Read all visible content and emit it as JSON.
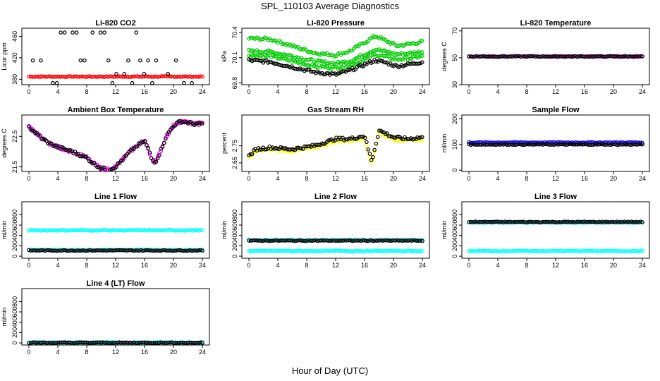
{
  "title": "SPL_110103  Average Diagnostics",
  "xlabel": "Hour of Day (UTC)",
  "colors": {
    "black": "#000000",
    "red": "#ff0000",
    "green": "#00cc00",
    "magenta": "#ff00ff",
    "yellow": "#ffff00",
    "blue": "#0000ff",
    "cyan": "#00ffff"
  },
  "chart_data": [
    {
      "type": "scatter",
      "title": "Li-820 CO2",
      "ylabel": "Licor ppm",
      "xlim": [
        0,
        24
      ],
      "ylim": [
        370,
        475
      ],
      "yticks": [
        380,
        420,
        460
      ],
      "xticks": [
        0,
        4,
        8,
        12,
        16,
        20,
        24
      ],
      "series": [
        {
          "name": "red",
          "color": "red",
          "kind": "band",
          "y": 385
        },
        {
          "name": "black",
          "color": "black",
          "kind": "rows",
          "rows": [
            467,
            415,
            390,
            373
          ]
        }
      ]
    },
    {
      "type": "scatter",
      "title": "Li-820 Pressure",
      "ylabel": "kPa",
      "xlim": [
        0,
        24
      ],
      "ylim": [
        69.78,
        70.45
      ],
      "yticks": [
        69.8,
        70.1,
        70.4
      ],
      "xticks": [
        0,
        4,
        8,
        12,
        16,
        20,
        24
      ],
      "series": [
        {
          "name": "green-upper",
          "color": "green",
          "kind": "curve",
          "x": [
            0,
            3,
            6,
            9,
            12,
            14,
            16,
            17.5,
            19,
            20.5,
            22,
            24
          ],
          "y": [
            70.33,
            70.32,
            70.24,
            70.16,
            70.13,
            70.18,
            70.28,
            70.36,
            70.3,
            70.24,
            70.26,
            70.29
          ]
        },
        {
          "name": "green-mid",
          "color": "green",
          "kind": "curve",
          "x": [
            0,
            3,
            6,
            9,
            12,
            14,
            16,
            17.5,
            19,
            20.5,
            22,
            24
          ],
          "y": [
            70.18,
            70.17,
            70.12,
            70.06,
            70.03,
            70.06,
            70.14,
            70.2,
            70.17,
            70.14,
            70.15,
            70.17
          ]
        },
        {
          "name": "green-low",
          "color": "green",
          "kind": "curve",
          "x": [
            0,
            3,
            6,
            9,
            12,
            14,
            16,
            17.5,
            19,
            20.5,
            22,
            24
          ],
          "y": [
            70.13,
            70.12,
            70.06,
            70.0,
            69.98,
            70.01,
            70.08,
            70.14,
            70.11,
            70.08,
            70.09,
            70.12
          ]
        },
        {
          "name": "black",
          "color": "black",
          "kind": "curve",
          "x": [
            0,
            3,
            6,
            9,
            12,
            14,
            16,
            17.5,
            19,
            20.5,
            22,
            24
          ],
          "y": [
            70.07,
            70.05,
            69.99,
            69.93,
            69.9,
            69.95,
            70.02,
            70.07,
            70.04,
            70.0,
            70.02,
            70.05
          ]
        }
      ]
    },
    {
      "type": "scatter",
      "title": "Li-820 Temperature",
      "ylabel": "degrees C",
      "xlim": [
        0,
        24
      ],
      "ylim": [
        30,
        72
      ],
      "yticks": [
        30,
        50,
        70
      ],
      "xticks": [
        0,
        4,
        8,
        12,
        16,
        20,
        24
      ],
      "series": [
        {
          "name": "magenta",
          "color": "magenta",
          "kind": "band",
          "y": 51
        },
        {
          "name": "black",
          "color": "black",
          "kind": "band",
          "y": 51
        }
      ]
    },
    {
      "type": "scatter",
      "title": "Ambient Box Temperature",
      "ylabel": "degrees C",
      "xlim": [
        0,
        24
      ],
      "ylim": [
        21.35,
        23.2
      ],
      "yticks": [
        21.5,
        22.5
      ],
      "xticks": [
        0,
        4,
        8,
        12,
        16,
        20,
        24
      ],
      "series": [
        {
          "name": "magenta",
          "color": "magenta",
          "kind": "curve",
          "x": [
            0,
            1,
            2,
            3,
            4,
            6,
            8,
            9,
            10,
            11,
            12,
            13,
            14,
            15,
            16,
            16.5,
            17,
            17.5,
            18,
            19,
            20,
            21,
            22,
            23,
            24
          ],
          "y": [
            22.8,
            22.6,
            22.4,
            22.25,
            22.15,
            22.0,
            21.8,
            21.6,
            21.45,
            21.42,
            21.5,
            21.75,
            22.0,
            22.2,
            22.35,
            22.1,
            21.75,
            21.65,
            21.9,
            22.5,
            22.85,
            23.0,
            22.95,
            22.9,
            22.92
          ]
        },
        {
          "name": "black",
          "color": "black",
          "kind": "curve",
          "x": [
            0,
            1,
            2,
            3,
            4,
            6,
            8,
            9,
            10,
            11,
            12,
            13,
            14,
            15,
            16,
            16.5,
            17,
            17.5,
            18,
            19,
            20,
            21,
            22,
            23,
            24
          ],
          "y": [
            22.8,
            22.6,
            22.4,
            22.25,
            22.15,
            22.0,
            21.8,
            21.6,
            21.45,
            21.42,
            21.5,
            21.75,
            22.0,
            22.2,
            22.35,
            22.1,
            21.75,
            21.65,
            21.9,
            22.5,
            22.85,
            23.0,
            22.95,
            22.9,
            22.92
          ]
        }
      ]
    },
    {
      "type": "scatter",
      "title": "Gas Stream RH",
      "ylabel": "percent",
      "xlim": [
        0,
        24
      ],
      "ylim": [
        2.6,
        2.93
      ],
      "yticks": [
        2.65,
        2.75
      ],
      "xticks": [
        0,
        4,
        8,
        12,
        16,
        20,
        24
      ],
      "series": [
        {
          "name": "yellow",
          "color": "yellow",
          "kind": "curve",
          "x": [
            0,
            1,
            3,
            6,
            9,
            12,
            14,
            16,
            16.5,
            17,
            17.5,
            18,
            19,
            20,
            22,
            24
          ],
          "y": [
            2.68,
            2.72,
            2.73,
            2.72,
            2.74,
            2.78,
            2.78,
            2.8,
            2.72,
            2.65,
            2.74,
            2.83,
            2.81,
            2.79,
            2.78,
            2.79
          ]
        },
        {
          "name": "black",
          "color": "black",
          "kind": "curve",
          "x": [
            0,
            1,
            3,
            6,
            9,
            12,
            14,
            16,
            16.5,
            17,
            17.5,
            18,
            19,
            20,
            22,
            24
          ],
          "y": [
            2.69,
            2.73,
            2.74,
            2.73,
            2.75,
            2.79,
            2.79,
            2.81,
            2.73,
            2.66,
            2.75,
            2.84,
            2.82,
            2.8,
            2.79,
            2.8
          ]
        }
      ]
    },
    {
      "type": "scatter",
      "title": "Sample Flow",
      "ylabel": "ml/min",
      "xlim": [
        0,
        24
      ],
      "ylim": [
        -5,
        215
      ],
      "yticks": [
        0,
        100,
        200
      ],
      "xticks": [
        0,
        4,
        8,
        12,
        16,
        20,
        24
      ],
      "series": [
        {
          "name": "blue",
          "color": "blue",
          "kind": "band",
          "y": 108
        },
        {
          "name": "black",
          "color": "black",
          "kind": "band",
          "y": 100
        }
      ]
    },
    {
      "type": "scatter",
      "title": "Line 1 Flow",
      "ylabel": "ml/min",
      "xlim": [
        0,
        24
      ],
      "ylim": [
        -40,
        1050
      ],
      "yticks": [
        0,
        200,
        400,
        600,
        800
      ],
      "xticks": [
        0,
        4,
        8,
        12,
        16,
        20,
        24
      ],
      "series": [
        {
          "name": "cyan",
          "color": "cyan",
          "kind": "band",
          "y": 500
        },
        {
          "name": "cyan2",
          "color": "cyan",
          "kind": "band",
          "y": 120
        },
        {
          "name": "black",
          "color": "black",
          "kind": "band",
          "y": 110
        }
      ]
    },
    {
      "type": "scatter",
      "title": "Line 2 Flow",
      "ylabel": "ml/min",
      "xlim": [
        0,
        24
      ],
      "ylim": [
        -40,
        1050
      ],
      "yticks": [
        0,
        200,
        400,
        600,
        800
      ],
      "xticks": [
        0,
        4,
        8,
        12,
        16,
        20,
        24
      ],
      "series": [
        {
          "name": "cyan",
          "color": "cyan",
          "kind": "band",
          "y": 310
        },
        {
          "name": "cyan2",
          "color": "cyan",
          "kind": "band",
          "y": 100
        },
        {
          "name": "black",
          "color": "black",
          "kind": "band",
          "y": 300
        }
      ]
    },
    {
      "type": "scatter",
      "title": "Line 3 Flow",
      "ylabel": "ml/min",
      "xlim": [
        0,
        24
      ],
      "ylim": [
        -40,
        1050
      ],
      "yticks": [
        0,
        200,
        400,
        600,
        800
      ],
      "xticks": [
        0,
        4,
        8,
        12,
        16,
        20,
        24
      ],
      "series": [
        {
          "name": "cyan",
          "color": "cyan",
          "kind": "band",
          "y": 650
        },
        {
          "name": "cyan2",
          "color": "cyan",
          "kind": "band",
          "y": 100
        },
        {
          "name": "black",
          "color": "black",
          "kind": "band",
          "y": 660
        }
      ]
    },
    {
      "type": "scatter",
      "title": "Line 4 (LT) Flow",
      "ylabel": "ml/min",
      "xlim": [
        0,
        24
      ],
      "ylim": [
        -40,
        1050
      ],
      "yticks": [
        0,
        200,
        400,
        600,
        800
      ],
      "xticks": [
        0,
        4,
        8,
        12,
        16,
        20,
        24
      ],
      "series": [
        {
          "name": "cyan",
          "color": "cyan",
          "kind": "band",
          "y": 10
        },
        {
          "name": "black",
          "color": "black",
          "kind": "band",
          "y": 5
        }
      ]
    }
  ]
}
